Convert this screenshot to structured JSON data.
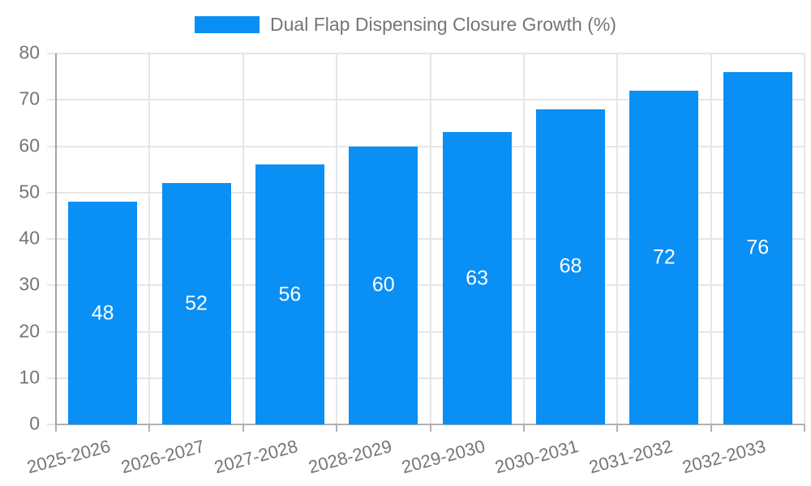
{
  "chart_data": {
    "type": "bar",
    "title": "",
    "legend": {
      "position": "top",
      "label": "Dual Flap Dispensing Closure Growth (%)"
    },
    "categories": [
      "2025-2026",
      "2026-2027",
      "2027-2028",
      "2028-2029",
      "2029-2030",
      "2030-2031",
      "2031-2032",
      "2032-2033"
    ],
    "values": [
      48,
      52,
      56,
      60,
      63,
      68,
      72,
      76
    ],
    "value_labels_inside_bars": true,
    "xlabel": "",
    "ylabel": "",
    "ylim": [
      0,
      80
    ],
    "ytick_step": 10,
    "yticks": [
      0,
      10,
      20,
      30,
      40,
      50,
      60,
      70,
      80
    ],
    "grid": true,
    "x_label_rotation_deg": -15,
    "colors": {
      "bar": "#0a8ff5",
      "value_label": "#ffffff",
      "tick_text": "#757575",
      "legend_text": "#757575",
      "gridline": "#e6e6e6",
      "axis": "#b0b0b0",
      "y_axis_line": "#a3a3a3"
    }
  }
}
